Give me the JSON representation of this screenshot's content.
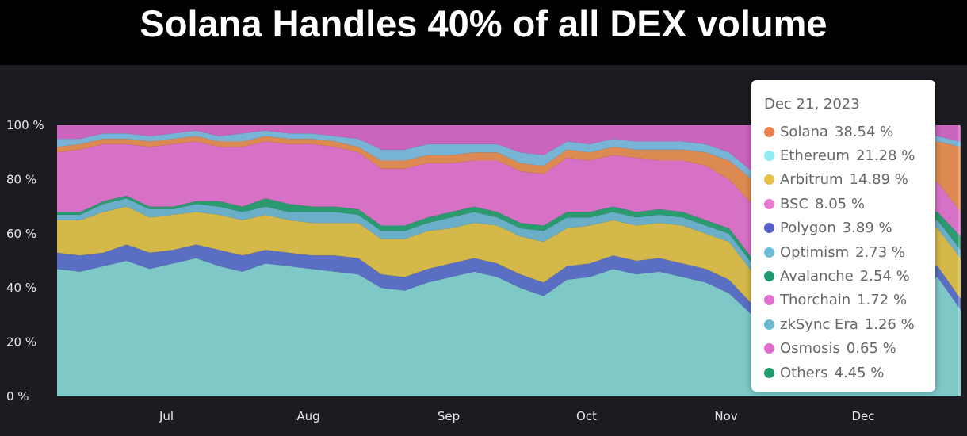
{
  "title": "Solana Handles 40% of all DEX volume",
  "chart_data": {
    "type": "area",
    "stacked": true,
    "percent": true,
    "title": "",
    "ylim": [
      0,
      100
    ],
    "y_ticks": [
      "100 %",
      "80 %",
      "60 %",
      "40 %",
      "20 %",
      "0 %"
    ],
    "x_ticks": [
      "Jul",
      "Aug",
      "Sep",
      "Oct",
      "Nov",
      "Dec"
    ],
    "grid": false,
    "legend": "tooltip-right",
    "series": [
      {
        "name": "Ethereum",
        "color": "#7ec8c8",
        "values": [
          47,
          46,
          48,
          50,
          47,
          49,
          51,
          48,
          46,
          49,
          48,
          47,
          46,
          45,
          40,
          39,
          42,
          44,
          46,
          44,
          40,
          37,
          43,
          44,
          47,
          45,
          46,
          44,
          42,
          38,
          30,
          36,
          44,
          45,
          46,
          44,
          45,
          43,
          44,
          32
        ]
      },
      {
        "name": "Polygon",
        "color": "#5a6fc4",
        "values": [
          6,
          6,
          5,
          6,
          6,
          5,
          5,
          6,
          6,
          5,
          5,
          5,
          6,
          6,
          5,
          5,
          5,
          5,
          5,
          5,
          5,
          5,
          5,
          5,
          5,
          5,
          5,
          5,
          5,
          5,
          4,
          5,
          5,
          5,
          5,
          5,
          5,
          5,
          4,
          4
        ]
      },
      {
        "name": "Arbitrum",
        "color": "#d4b84a",
        "values": [
          12,
          13,
          15,
          14,
          13,
          13,
          12,
          13,
          13,
          13,
          12,
          12,
          12,
          13,
          13,
          14,
          14,
          13,
          13,
          14,
          14,
          15,
          14,
          14,
          13,
          13,
          13,
          14,
          13,
          14,
          12,
          13,
          13,
          14,
          13,
          14,
          14,
          15,
          14,
          15
        ]
      },
      {
        "name": "Optimism",
        "color": "#6aaec8",
        "values": [
          2,
          2,
          3,
          3,
          3,
          2,
          3,
          3,
          3,
          3,
          3,
          4,
          4,
          3,
          3,
          3,
          3,
          4,
          4,
          3,
          3,
          4,
          4,
          3,
          3,
          3,
          3,
          3,
          3,
          3,
          3,
          3,
          3,
          3,
          3,
          3,
          3,
          3,
          3,
          3
        ]
      },
      {
        "name": "Avalanche",
        "color": "#2b9a6e",
        "values": [
          1,
          1,
          1,
          1,
          1,
          1,
          1,
          2,
          2,
          3,
          3,
          2,
          2,
          2,
          2,
          2,
          2,
          2,
          2,
          2,
          2,
          2,
          2,
          2,
          2,
          2,
          2,
          2,
          2,
          2,
          2,
          2,
          2,
          2,
          2,
          2,
          2,
          3,
          3,
          5
        ]
      },
      {
        "name": "BSC",
        "color": "#d771c6",
        "values": [
          22,
          23,
          21,
          19,
          22,
          23,
          22,
          20,
          22,
          21,
          22,
          23,
          22,
          21,
          21,
          21,
          20,
          18,
          17,
          19,
          19,
          19,
          20,
          19,
          19,
          20,
          18,
          19,
          20,
          18,
          20,
          16,
          15,
          14,
          14,
          13,
          13,
          12,
          11,
          9
        ]
      },
      {
        "name": "Solana",
        "color": "#dc8a52",
        "values": [
          2,
          2,
          2,
          2,
          2,
          2,
          2,
          2,
          2,
          2,
          2,
          2,
          2,
          2,
          3,
          3,
          3,
          3,
          3,
          3,
          3,
          3,
          3,
          3,
          3,
          3,
          4,
          4,
          5,
          7,
          9,
          7,
          7,
          8,
          9,
          11,
          12,
          13,
          15,
          24
        ]
      },
      {
        "name": "zkSync Era",
        "color": "#78b4d6",
        "values": [
          3,
          2,
          2,
          2,
          2,
          2,
          2,
          2,
          3,
          2,
          2,
          2,
          2,
          3,
          4,
          4,
          4,
          4,
          3,
          3,
          4,
          4,
          3,
          3,
          3,
          3,
          3,
          3,
          3,
          3,
          3,
          3,
          3,
          3,
          3,
          3,
          2,
          2,
          2,
          2
        ]
      },
      {
        "name": "Others",
        "color": "#c964bf",
        "values": [
          5,
          5,
          3,
          3,
          4,
          3,
          2,
          4,
          3,
          2,
          3,
          3,
          4,
          5,
          9,
          9,
          7,
          7,
          7,
          7,
          10,
          11,
          6,
          7,
          5,
          6,
          6,
          6,
          7,
          10,
          17,
          15,
          8,
          6,
          5,
          5,
          4,
          4,
          4,
          6
        ]
      }
    ]
  },
  "tooltip": {
    "date": "Dec 21, 2023",
    "rows": [
      {
        "name": "Solana",
        "value": "38.54 %",
        "color": "#e8834f"
      },
      {
        "name": "Ethereum",
        "value": "21.28 %",
        "color": "#8eedf2"
      },
      {
        "name": "Arbitrum",
        "value": "14.89 %",
        "color": "#e6c14a"
      },
      {
        "name": "BSC",
        "value": "8.05 %",
        "color": "#e87ad4"
      },
      {
        "name": "Polygon",
        "value": "3.89 %",
        "color": "#5561c7"
      },
      {
        "name": "Optimism",
        "value": "2.73 %",
        "color": "#6cbdd8"
      },
      {
        "name": "Avalanche",
        "value": "2.54 %",
        "color": "#1f9a73"
      },
      {
        "name": "Thorchain",
        "value": "1.72 %",
        "color": "#e36fcf"
      },
      {
        "name": "zkSync Era",
        "value": "1.26 %",
        "color": "#6cbad1"
      },
      {
        "name": "Osmosis",
        "value": "0.65 %",
        "color": "#e06bcd"
      },
      {
        "name": "Others",
        "value": "4.45 %",
        "color": "#219a6e"
      }
    ]
  }
}
